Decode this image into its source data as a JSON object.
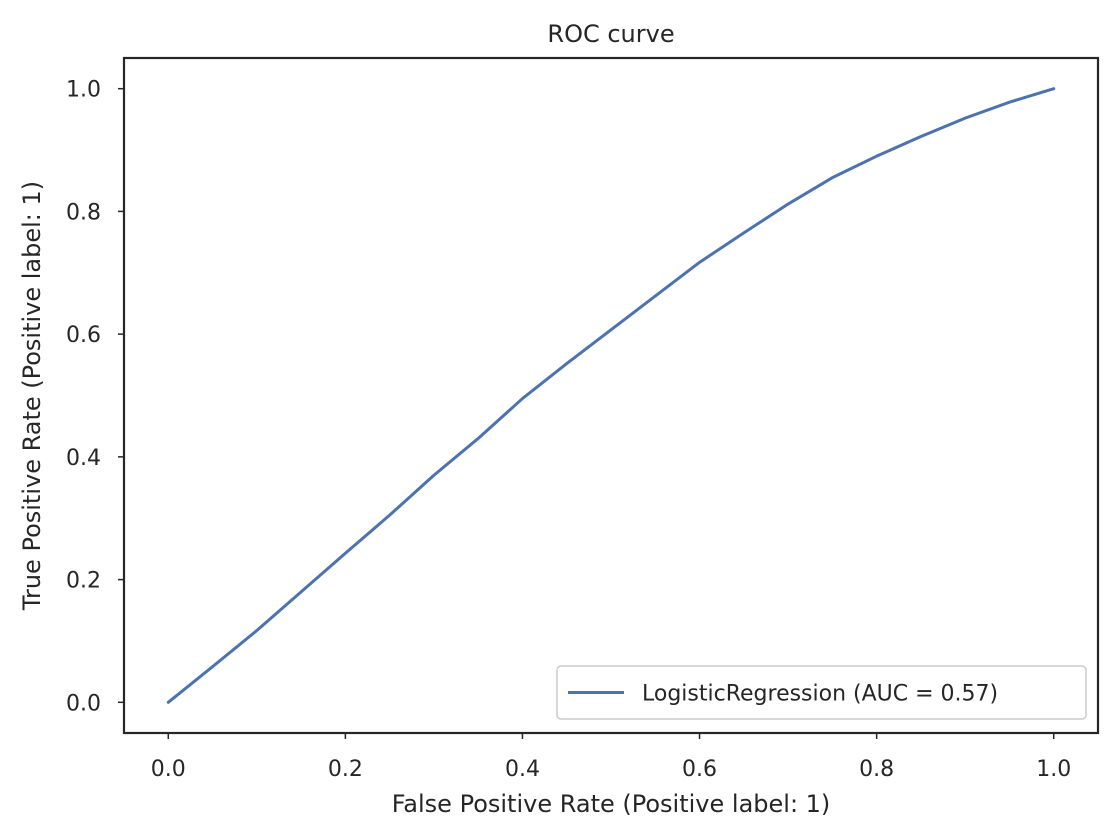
{
  "colors": {
    "series": "#4c72b0",
    "axes": "#262626",
    "background": "#ffffff",
    "legend_border": "#cccccc"
  },
  "chart_data": {
    "type": "line",
    "title": "ROC curve",
    "xlabel": "False Positive Rate (Positive label: 1)",
    "ylabel": "True Positive Rate (Positive label: 1)",
    "xlim": [
      -0.05,
      1.05
    ],
    "ylim": [
      -0.05,
      1.05
    ],
    "grid": false,
    "legend_position": "lower right",
    "x_ticks": [
      0.0,
      0.2,
      0.4,
      0.6,
      0.8,
      1.0
    ],
    "y_ticks": [
      0.0,
      0.2,
      0.4,
      0.6,
      0.8,
      1.0
    ],
    "x_tick_labels": [
      "0.0",
      "0.2",
      "0.4",
      "0.6",
      "0.8",
      "1.0"
    ],
    "y_tick_labels": [
      "0.0",
      "0.2",
      "0.4",
      "0.6",
      "0.8",
      "1.0"
    ],
    "series": [
      {
        "name": "LogisticRegression (AUC = 0.57)",
        "x": [
          0.0,
          0.05,
          0.1,
          0.15,
          0.2,
          0.25,
          0.3,
          0.35,
          0.4,
          0.45,
          0.5,
          0.55,
          0.6,
          0.65,
          0.7,
          0.75,
          0.8,
          0.85,
          0.9,
          0.95,
          1.0
        ],
        "y": [
          0.0,
          0.058,
          0.117,
          0.18,
          0.243,
          0.305,
          0.37,
          0.43,
          0.495,
          0.552,
          0.607,
          0.662,
          0.717,
          0.765,
          0.812,
          0.855,
          0.89,
          0.922,
          0.952,
          0.978,
          1.0
        ]
      }
    ]
  }
}
